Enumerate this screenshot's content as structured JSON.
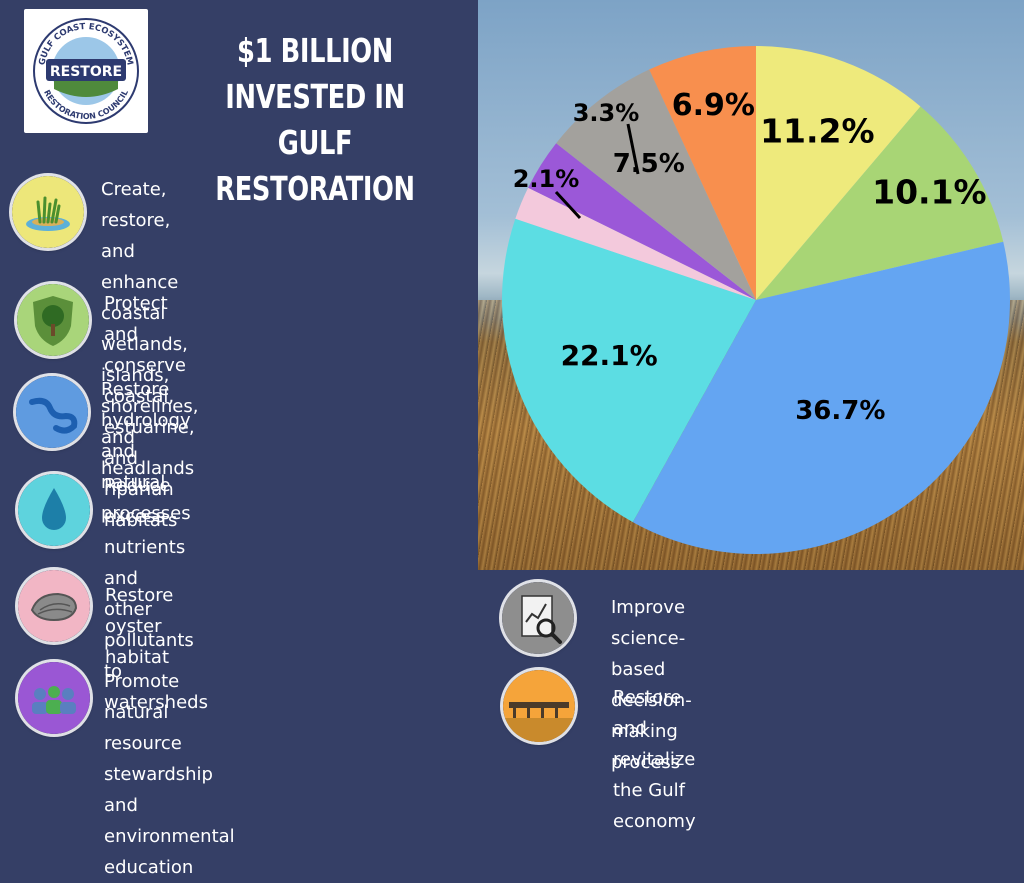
{
  "title": "$1 BILLION INVESTED IN GULF RESTORATION",
  "title_lines": [
    "$1 BILLION INVESTED IN",
    "GULF RESTORATION"
  ],
  "logo": {
    "top_text": "GULF COAST ECOSYSTEM",
    "center_text": "RESTORE",
    "bottom_text": "RESTORATION COUNCIL"
  },
  "legend_items": [
    {
      "icon": "wetlands-icon",
      "color": "#ede77a",
      "lines": [
        "Create, restore, and enhance coastal",
        "wetlands, islands, shorelines, and",
        "headlands"
      ]
    },
    {
      "icon": "tree-shield-icon",
      "color": "#a9d57a",
      "lines": [
        "Protect and conserve coastal,",
        "estuarine, and riparian habitats"
      ]
    },
    {
      "icon": "river-icon",
      "color": "#5f9be0",
      "lines": [
        "Restore hydrology and natural",
        "processes"
      ]
    },
    {
      "icon": "water-drop-icon",
      "color": "#5ed3dd",
      "lines": [
        "Reduce excess nutrients and",
        "other pollutants to watersheds"
      ]
    },
    {
      "icon": "oyster-icon",
      "color": "#f2b6c5",
      "lines": [
        "Restore oyster habitat"
      ]
    },
    {
      "icon": "people-icon",
      "color": "#9a57d4",
      "lines": [
        "Promote natural resource stewardship",
        "and environmental education"
      ]
    },
    {
      "icon": "chart-magnifier-icon",
      "color": "#8e8e8e",
      "lines": [
        "Improve science-based decision-",
        "making process"
      ]
    },
    {
      "icon": "pier-icon",
      "color": "#f5a43a",
      "lines": [
        "Restore and revitalize the Gulf economy"
      ]
    }
  ],
  "chart_data": {
    "type": "pie",
    "title": "$1 BILLION INVESTED IN GULF RESTORATION",
    "start": "12 o'clock, clockwise",
    "categories": [
      "Create, restore, and enhance coastal wetlands, islands, shorelines, and headlands",
      "Protect and conserve coastal, estuarine, and riparian habitats",
      "Restore hydrology and natural processes",
      "Reduce excess nutrients and other pollutants to watersheds",
      "Restore oyster habitat",
      "Promote natural resource stewardship and environmental education",
      "Improve science-based decision-making process",
      "Restore and revitalize the Gulf economy"
    ],
    "values": [
      11.2,
      10.1,
      36.7,
      22.1,
      2.1,
      3.3,
      7.5,
      6.9
    ],
    "labels": [
      "11.2%",
      "10.1%",
      "36.7%",
      "22.1%",
      "2.1%",
      "3.3%",
      "7.5%",
      "6.9%"
    ],
    "colors": [
      "#eeea7c",
      "#a8d575",
      "#64a5f2",
      "#5cdde3",
      "#f3c9dc",
      "#9b58d8",
      "#a3a19d",
      "#f88f4e"
    ]
  }
}
